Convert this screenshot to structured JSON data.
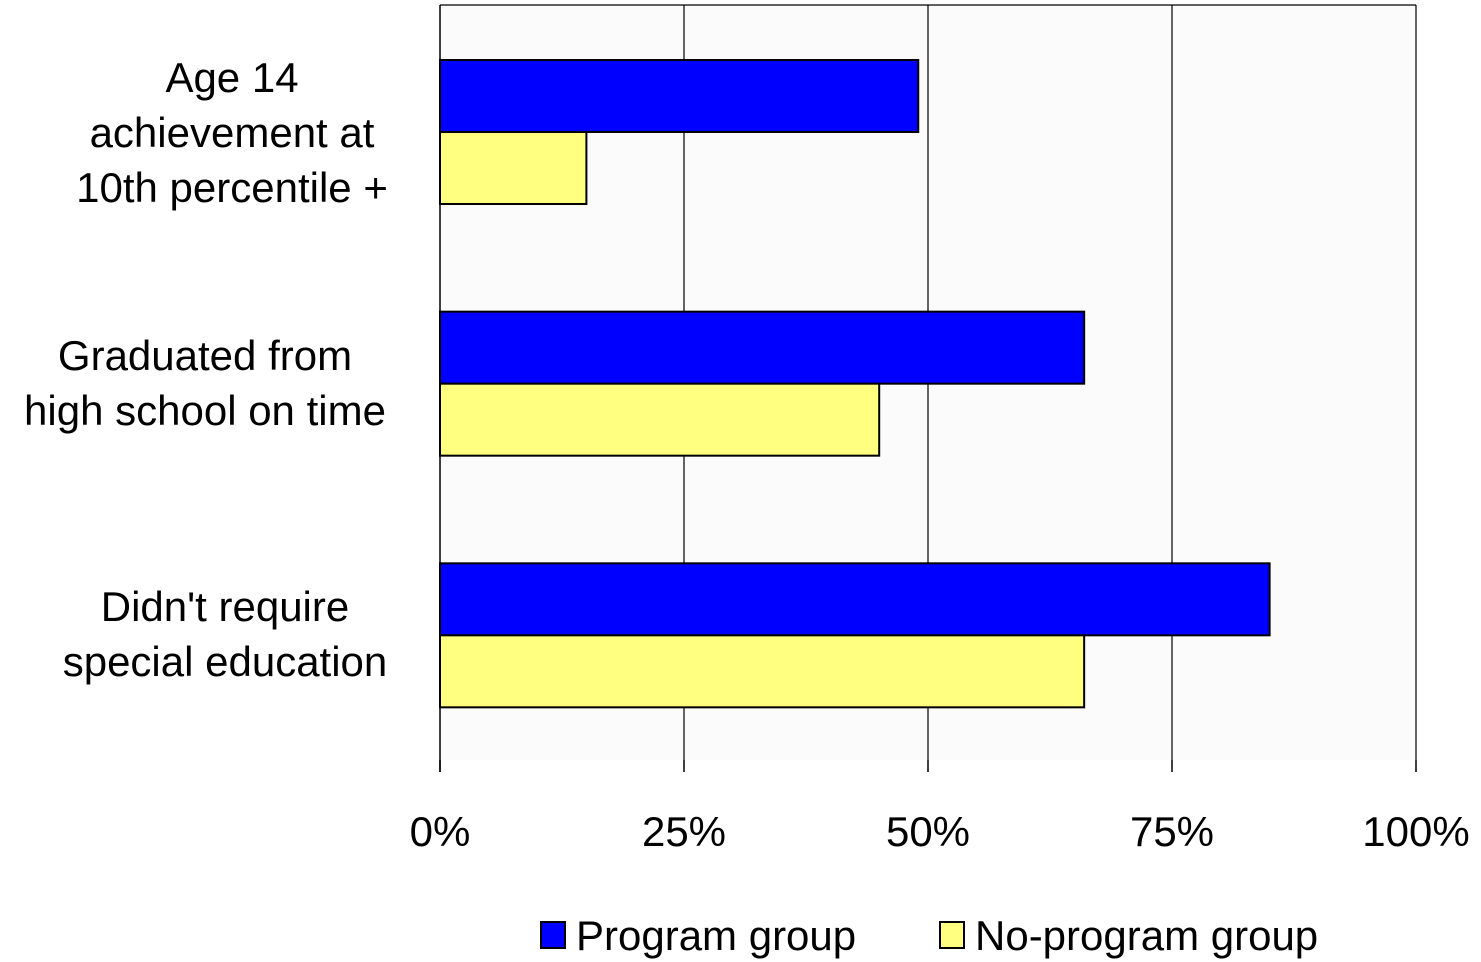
{
  "chart_data": {
    "type": "bar",
    "orientation": "horizontal",
    "categories": [
      [
        "Age 14",
        "achievement at",
        "10th percentile +"
      ],
      [
        "Graduated from",
        "high school on time"
      ],
      [
        "Didn't require",
        "special education"
      ]
    ],
    "series": [
      {
        "name": "Program group",
        "color": "#0000ff",
        "values": [
          49,
          66,
          85
        ]
      },
      {
        "name": "No-program group",
        "color": "#ffff80",
        "values": [
          15,
          45,
          66
        ]
      }
    ],
    "xlim": [
      0,
      100
    ],
    "xticks": [
      0,
      25,
      50,
      75,
      100
    ],
    "tick_labels": [
      "0%",
      "25%",
      "50%",
      "75%",
      "100%"
    ],
    "grid": true,
    "legend_position": "bottom",
    "plot_background": "#fbfbfb"
  }
}
